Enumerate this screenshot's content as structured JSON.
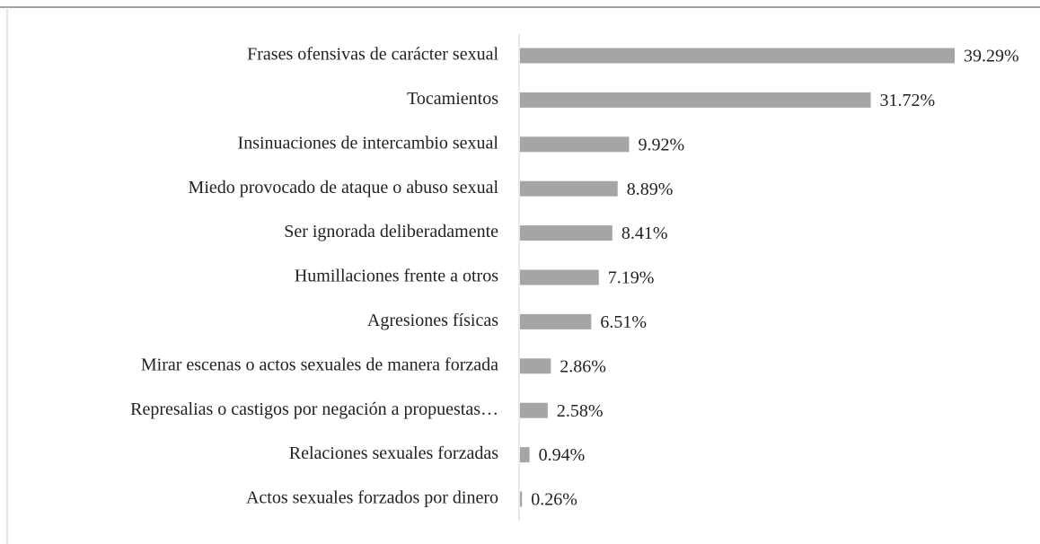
{
  "chart_data": {
    "type": "bar",
    "orientation": "horizontal",
    "categories": [
      "Frases ofensivas de carácter sexual",
      "Tocamientos",
      "Insinuaciones de intercambio sexual",
      "Miedo provocado de ataque o abuso sexual",
      "Ser ignorada deliberadamente",
      "Humillaciones frente a otros",
      "Agresiones físicas",
      "Mirar escenas o actos sexuales de manera forzada",
      "Represalias o castigos por negación a propuestas…",
      "Relaciones sexuales forzadas",
      "Actos sexuales forzados por dinero"
    ],
    "values": [
      39.29,
      31.72,
      9.92,
      8.89,
      8.41,
      7.19,
      6.51,
      2.86,
      2.58,
      0.94,
      0.26
    ],
    "value_labels": [
      "39.29%",
      "31.72%",
      "9.92%",
      "8.89%",
      "8.41%",
      "7.19%",
      "6.51%",
      "2.86%",
      "2.58%",
      "0.94%",
      "0.26%"
    ],
    "color": "#a5a5a5"
  }
}
